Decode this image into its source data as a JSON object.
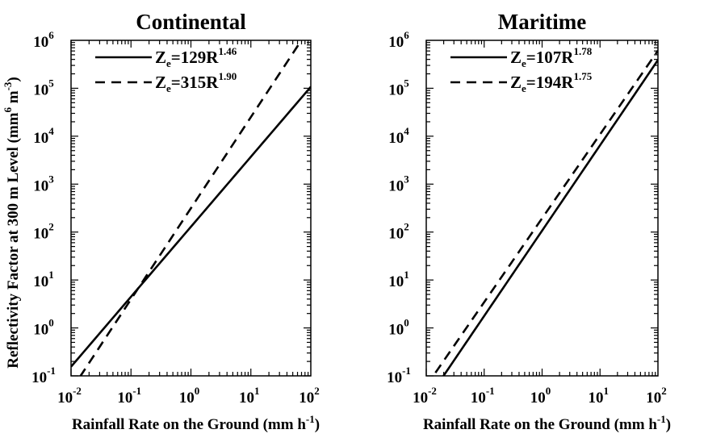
{
  "chart_data": [
    {
      "type": "line",
      "title": "Continental",
      "xlabel": "Rainfall Rate on the Ground (mm h",
      "xlabel_sup": "-1",
      "xlabel_end": ")",
      "ylabel": "Reflectivity Factor at 300 m Level (mm",
      "ylabel_sup1": "6",
      "ylabel_mid": " m",
      "ylabel_sup2": "-3",
      "ylabel_end": ")",
      "x_scale": "log",
      "y_scale": "log",
      "xlim": [
        0.01,
        100
      ],
      "ylim": [
        0.1,
        1000000
      ],
      "x_ticks": [
        {
          "base": "10",
          "exp": "-2"
        },
        {
          "base": "10",
          "exp": "-1"
        },
        {
          "base": "10",
          "exp": "0"
        },
        {
          "base": "10",
          "exp": "1"
        },
        {
          "base": "10",
          "exp": "2"
        }
      ],
      "y_ticks": [
        {
          "base": "10",
          "exp": "-1"
        },
        {
          "base": "10",
          "exp": "0"
        },
        {
          "base": "10",
          "exp": "1"
        },
        {
          "base": "10",
          "exp": "2"
        },
        {
          "base": "10",
          "exp": "3"
        },
        {
          "base": "10",
          "exp": "4"
        },
        {
          "base": "10",
          "exp": "5"
        },
        {
          "base": "10",
          "exp": "6"
        }
      ],
      "legend_position": "top-left",
      "series": [
        {
          "name_main": "Z",
          "name_sub": "e",
          "name_eq": "=129R",
          "name_exp": "1.46",
          "a": 129,
          "b": 1.46,
          "style": "solid"
        },
        {
          "name_main": "Z",
          "name_sub": "e",
          "name_eq": "=315R",
          "name_exp": "1.90",
          "a": 315,
          "b": 1.9,
          "style": "dashed"
        }
      ]
    },
    {
      "type": "line",
      "title": "Maritime",
      "xlabel": "Rainfall Rate on the Ground (mm h",
      "xlabel_sup": "-1",
      "xlabel_end": ")",
      "x_scale": "log",
      "y_scale": "log",
      "xlim": [
        0.01,
        100
      ],
      "ylim": [
        0.1,
        1000000
      ],
      "x_ticks": [
        {
          "base": "10",
          "exp": "-2"
        },
        {
          "base": "10",
          "exp": "-1"
        },
        {
          "base": "10",
          "exp": "0"
        },
        {
          "base": "10",
          "exp": "1"
        },
        {
          "base": "10",
          "exp": "2"
        }
      ],
      "y_ticks": [
        {
          "base": "10",
          "exp": "-1"
        },
        {
          "base": "10",
          "exp": "0"
        },
        {
          "base": "10",
          "exp": "1"
        },
        {
          "base": "10",
          "exp": "2"
        },
        {
          "base": "10",
          "exp": "3"
        },
        {
          "base": "10",
          "exp": "4"
        },
        {
          "base": "10",
          "exp": "5"
        },
        {
          "base": "10",
          "exp": "6"
        }
      ],
      "legend_position": "top-left",
      "series": [
        {
          "name_main": "Z",
          "name_sub": "e",
          "name_eq": "=107R",
          "name_exp": "1.78",
          "a": 107,
          "b": 1.78,
          "style": "solid"
        },
        {
          "name_main": "Z",
          "name_sub": "e",
          "name_eq": "=194R",
          "name_exp": "1.75",
          "a": 194,
          "b": 1.75,
          "style": "dashed"
        }
      ]
    }
  ]
}
